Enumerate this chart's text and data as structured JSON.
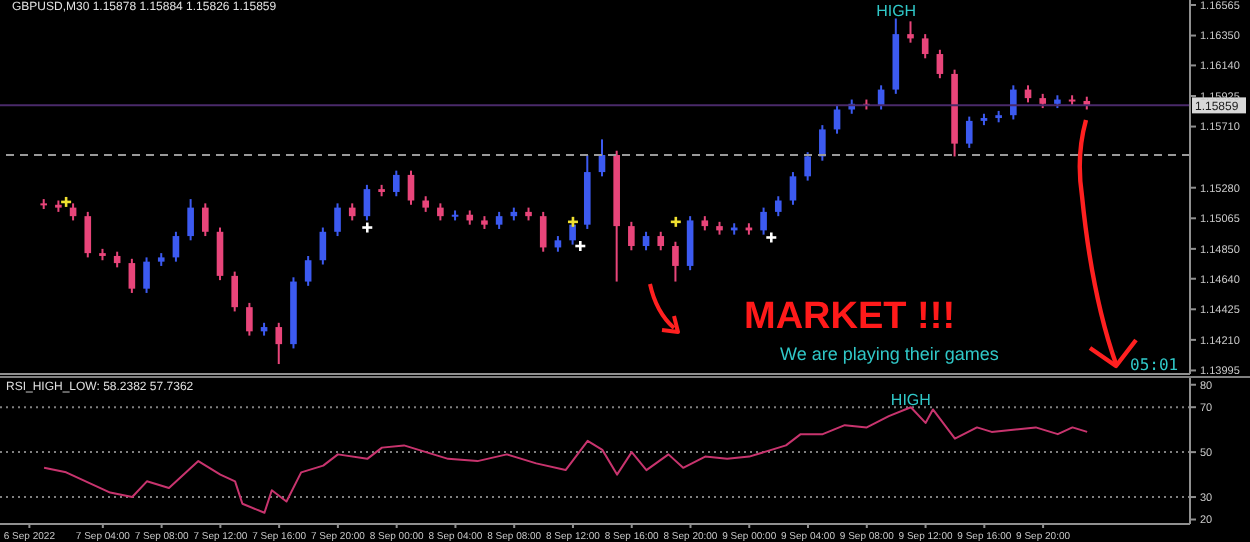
{
  "chart_data": [
    {
      "type": "candlestick",
      "title": "GBPUSD,M30 1.15878 1.15884 1.15826 1.15859",
      "x": [
        "2022-09-07T00:00",
        "2022-09-07T01:00",
        "2022-09-07T02:00",
        "2022-09-07T03:00",
        "2022-09-07T04:00",
        "2022-09-07T05:00",
        "2022-09-07T06:00",
        "2022-09-07T07:00",
        "2022-09-07T08:00",
        "2022-09-07T09:00",
        "2022-09-07T10:00",
        "2022-09-07T11:00",
        "2022-09-07T12:00",
        "2022-09-07T13:00",
        "2022-09-07T14:00",
        "2022-09-07T15:00",
        "2022-09-07T16:00",
        "2022-09-07T17:00",
        "2022-09-07T18:00",
        "2022-09-07T19:00",
        "2022-09-07T20:00",
        "2022-09-07T21:00",
        "2022-09-07T22:00",
        "2022-09-07T23:00",
        "2022-09-08T00:00",
        "2022-09-08T01:00",
        "2022-09-08T02:00",
        "2022-09-08T03:00",
        "2022-09-08T04:00",
        "2022-09-08T05:00",
        "2022-09-08T06:00",
        "2022-09-08T07:00",
        "2022-09-08T08:00",
        "2022-09-08T09:00",
        "2022-09-08T10:00",
        "2022-09-08T11:00",
        "2022-09-08T12:00",
        "2022-09-08T13:00",
        "2022-09-08T14:00",
        "2022-09-08T15:00",
        "2022-09-08T16:00",
        "2022-09-08T17:00",
        "2022-09-08T18:00",
        "2022-09-08T19:00",
        "2022-09-08T20:00",
        "2022-09-08T21:00",
        "2022-09-08T22:00",
        "2022-09-08T23:00",
        "2022-09-09T00:00",
        "2022-09-09T01:00",
        "2022-09-09T02:00",
        "2022-09-09T03:00",
        "2022-09-09T04:00",
        "2022-09-09T05:00",
        "2022-09-09T06:00",
        "2022-09-09T07:00",
        "2022-09-09T08:00",
        "2022-09-09T09:00",
        "2022-09-09T10:00",
        "2022-09-09T11:00",
        "2022-09-09T12:00",
        "2022-09-09T13:00",
        "2022-09-09T14:00",
        "2022-09-09T15:00",
        "2022-09-09T16:00",
        "2022-09-09T17:00",
        "2022-09-09T18:00",
        "2022-09-09T19:00",
        "2022-09-09T20:00",
        "2022-09-09T21:00",
        "2022-09-09T22:00",
        "2022-09-09T23:00"
      ],
      "ohlc": [
        [
          1.1517,
          1.152,
          1.1513,
          1.1516
        ],
        [
          1.1516,
          1.1519,
          1.1511,
          1.1514
        ],
        [
          1.1514,
          1.1517,
          1.1505,
          1.1508
        ],
        [
          1.1508,
          1.1511,
          1.1479,
          1.1482
        ],
        [
          1.1482,
          1.1485,
          1.1477,
          1.148
        ],
        [
          1.148,
          1.1483,
          1.1472,
          1.1475
        ],
        [
          1.1475,
          1.1478,
          1.1454,
          1.1457
        ],
        [
          1.1457,
          1.1479,
          1.1454,
          1.1476
        ],
        [
          1.1476,
          1.1482,
          1.1473,
          1.1479
        ],
        [
          1.1479,
          1.1497,
          1.1476,
          1.1494
        ],
        [
          1.1494,
          1.152,
          1.1491,
          1.1514
        ],
        [
          1.1514,
          1.1517,
          1.1494,
          1.1497
        ],
        [
          1.1497,
          1.15,
          1.1463,
          1.1466
        ],
        [
          1.1466,
          1.1469,
          1.1441,
          1.1444
        ],
        [
          1.1444,
          1.1447,
          1.1424,
          1.1427
        ],
        [
          1.1427,
          1.1433,
          1.1424,
          1.143
        ],
        [
          1.143,
          1.1433,
          1.1404,
          1.1418
        ],
        [
          1.1418,
          1.1465,
          1.1415,
          1.1462
        ],
        [
          1.1462,
          1.148,
          1.1459,
          1.1477
        ],
        [
          1.1477,
          1.15,
          1.1474,
          1.1497
        ],
        [
          1.1497,
          1.1517,
          1.1494,
          1.1514
        ],
        [
          1.1514,
          1.1517,
          1.1505,
          1.1508
        ],
        [
          1.1508,
          1.153,
          1.1505,
          1.1527
        ],
        [
          1.1527,
          1.153,
          1.1522,
          1.1525
        ],
        [
          1.1525,
          1.154,
          1.1522,
          1.1537
        ],
        [
          1.1537,
          1.154,
          1.1516,
          1.1519
        ],
        [
          1.1519,
          1.1522,
          1.1511,
          1.1514
        ],
        [
          1.1514,
          1.1517,
          1.1505,
          1.1508
        ],
        [
          1.1508,
          1.1512,
          1.1505,
          1.1509
        ],
        [
          1.1509,
          1.1512,
          1.1502,
          1.1505
        ],
        [
          1.1505,
          1.1508,
          1.1499,
          1.1502
        ],
        [
          1.1502,
          1.1511,
          1.1499,
          1.1508
        ],
        [
          1.1508,
          1.1514,
          1.1505,
          1.1511
        ],
        [
          1.1511,
          1.1514,
          1.1505,
          1.1508
        ],
        [
          1.1508,
          1.1511,
          1.1483,
          1.1486
        ],
        [
          1.1486,
          1.1494,
          1.1483,
          1.1491
        ],
        [
          1.1491,
          1.1505,
          1.1488,
          1.1502
        ],
        [
          1.1502,
          1.1551,
          1.1499,
          1.1539
        ],
        [
          1.1539,
          1.1562,
          1.1536,
          1.1551
        ],
        [
          1.1551,
          1.1554,
          1.1462,
          1.1501
        ],
        [
          1.1501,
          1.1504,
          1.1484,
          1.1487
        ],
        [
          1.1487,
          1.1497,
          1.1484,
          1.1494
        ],
        [
          1.1494,
          1.1497,
          1.1484,
          1.1487
        ],
        [
          1.1487,
          1.149,
          1.1462,
          1.1473
        ],
        [
          1.1473,
          1.1508,
          1.147,
          1.1505
        ],
        [
          1.1505,
          1.1508,
          1.1498,
          1.1501
        ],
        [
          1.1501,
          1.1504,
          1.1495,
          1.1498
        ],
        [
          1.1498,
          1.1503,
          1.1495,
          1.15
        ],
        [
          1.15,
          1.1503,
          1.1495,
          1.1498
        ],
        [
          1.1498,
          1.1514,
          1.1495,
          1.1511
        ],
        [
          1.1511,
          1.1522,
          1.1508,
          1.1519
        ],
        [
          1.1519,
          1.1539,
          1.1516,
          1.1536
        ],
        [
          1.1536,
          1.1553,
          1.1533,
          1.155
        ],
        [
          1.155,
          1.1572,
          1.1547,
          1.1569
        ],
        [
          1.1569,
          1.1586,
          1.1566,
          1.1583
        ],
        [
          1.1583,
          1.159,
          1.158,
          1.1587
        ],
        [
          1.1587,
          1.159,
          1.1583,
          1.1586
        ],
        [
          1.1586,
          1.16,
          1.1583,
          1.1597
        ],
        [
          1.1597,
          1.1647,
          1.1594,
          1.1636
        ],
        [
          1.1636,
          1.1645,
          1.163,
          1.1633
        ],
        [
          1.1633,
          1.1636,
          1.1619,
          1.1622
        ],
        [
          1.1622,
          1.1625,
          1.1605,
          1.1608
        ],
        [
          1.1608,
          1.1611,
          1.155,
          1.1559
        ],
        [
          1.1559,
          1.1578,
          1.1556,
          1.1575
        ],
        [
          1.1575,
          1.158,
          1.1572,
          1.1577
        ],
        [
          1.1577,
          1.1582,
          1.1574,
          1.1579
        ],
        [
          1.1579,
          1.16,
          1.1576,
          1.1597
        ],
        [
          1.1597,
          1.16,
          1.1588,
          1.1591
        ],
        [
          1.1591,
          1.1594,
          1.1584,
          1.1587
        ],
        [
          1.1587,
          1.1593,
          1.1584,
          1.159
        ],
        [
          1.159,
          1.1593,
          1.1586,
          1.1589
        ],
        [
          1.1589,
          1.1592,
          1.1583,
          1.1586
        ]
      ],
      "colors": [
        "#e8457a",
        "#e8457a",
        "#e8457a",
        "#e8457a",
        "#e8457a",
        "#e8457a",
        "#e8457a",
        "#3c5af0",
        "#3c5af0",
        "#3c5af0",
        "#3c5af0",
        "#e8457a",
        "#e8457a",
        "#e8457a",
        "#e8457a",
        "#3c5af0",
        "#e8457a",
        "#3c5af0",
        "#3c5af0",
        "#3c5af0",
        "#3c5af0",
        "#e8457a",
        "#3c5af0",
        "#e8457a",
        "#3c5af0",
        "#e8457a",
        "#e8457a",
        "#e8457a",
        "#3c5af0",
        "#e8457a",
        "#e8457a",
        "#3c5af0",
        "#3c5af0",
        "#e8457a",
        "#e8457a",
        "#3c5af0",
        "#3c5af0",
        "#3c5af0",
        "#3c5af0",
        "#e8457a",
        "#e8457a",
        "#3c5af0",
        "#e8457a",
        "#e8457a",
        "#3c5af0",
        "#e8457a",
        "#e8457a",
        "#3c5af0",
        "#e8457a",
        "#3c5af0",
        "#3c5af0",
        "#3c5af0",
        "#3c5af0",
        "#3c5af0",
        "#3c5af0",
        "#3c5af0",
        "#e8457a",
        "#3c5af0",
        "#3c5af0",
        "#e8457a",
        "#e8457a",
        "#e8457a",
        "#e8457a",
        "#3c5af0",
        "#3c5af0",
        "#3c5af0",
        "#3c5af0",
        "#e8457a",
        "#e8457a",
        "#3c5af0",
        "#e8457a",
        "#e8457a"
      ],
      "series": [
        {
          "type": "scatter",
          "color": "#f0e030",
          "marker": "cross",
          "x": [
            "2022-09-07T01:30",
            "2022-09-08T12:00",
            "2022-09-08T19:00"
          ],
          "values": [
            1.1518,
            1.1504,
            1.1504
          ]
        },
        {
          "type": "scatter",
          "color": "#ffffff",
          "marker": "cross",
          "x": [
            "2022-09-07T22:00",
            "2022-09-08T12:30",
            "2022-09-09T01:30"
          ],
          "values": [
            1.15,
            1.1487,
            1.1493
          ]
        }
      ],
      "xlim": [
        "2022-09-06T21:00",
        "2022-09-10T06:00"
      ],
      "ylim": [
        1.1397,
        1.166
      ],
      "yticks": [
        1.16565,
        {
          "value": 1.1635,
          "label": "1.16350"
        },
        {
          "value": 1.1614,
          "label": "1.16140"
        },
        1.15925,
        {
          "value": 1.1571,
          "label": "1.15710"
        },
        {
          "value": 1.1528,
          "label": "1.15280"
        },
        1.15065,
        {
          "value": 1.1485,
          "label": "1.14850"
        },
        {
          "value": 1.1464,
          "label": "1.14640"
        },
        1.14425,
        {
          "value": 1.1421,
          "label": "1.14210"
        },
        1.13995
      ],
      "tick_labels": "y",
      "grid": false,
      "ref_lines": [
        {
          "axis": "y",
          "value": 1.15859,
          "label": "1.15859",
          "color": "#4a2a6a",
          "line_style": "solid"
        },
        {
          "axis": "y",
          "value": 1.1551,
          "color": "#9a9a9a",
          "line_style": "dashed"
        }
      ],
      "annotations": [
        "MARKET !!!",
        "We are playing their games",
        "05:01",
        {
          "text": "HIGH",
          "x": "2022-09-09T10:00",
          "y": 1.1647
        }
      ]
    },
    {
      "type": "line",
      "title": "RSI_HIGH_LOW: 58.2382 57.7362",
      "x": [
        "2022-09-07T00:00",
        "2022-09-07T01:30",
        "2022-09-07T04:30",
        "2022-09-07T06:00",
        "2022-09-07T07:00",
        "2022-09-07T08:30",
        "2022-09-07T10:30",
        "2022-09-07T12:00",
        "2022-09-07T13:00",
        "2022-09-07T13:30",
        "2022-09-07T15:00",
        "2022-09-07T15:30",
        "2022-09-07T16:30",
        "2022-09-07T17:30",
        "2022-09-07T19:00",
        "2022-09-07T20:00",
        "2022-09-07T22:00",
        "2022-09-07T23:00",
        "2022-09-08T00:30",
        "2022-09-08T02:30",
        "2022-09-08T03:30",
        "2022-09-08T05:30",
        "2022-09-08T07:30",
        "2022-09-08T09:30",
        "2022-09-08T11:30",
        "2022-09-08T13:00",
        "2022-09-08T14:00",
        "2022-09-08T15:00",
        "2022-09-08T16:00",
        "2022-09-08T17:00",
        "2022-09-08T18:30",
        "2022-09-08T19:30",
        "2022-09-08T21:00",
        "2022-09-08T22:30",
        "2022-09-09T00:00",
        "2022-09-09T02:30",
        "2022-09-09T03:30",
        "2022-09-09T05:00",
        "2022-09-09T06:30",
        "2022-09-09T08:00",
        "2022-09-09T09:30",
        "2022-09-09T11:00",
        "2022-09-09T12:00",
        "2022-09-09T12:30",
        "2022-09-09T14:00",
        "2022-09-09T15:30",
        "2022-09-09T16:30",
        "2022-09-09T19:30",
        "2022-09-09T21:00",
        "2022-09-09T22:00",
        "2022-09-09T23:00"
      ],
      "series": [
        {
          "color": "#c8346e",
          "values": [
            43,
            41,
            32,
            30,
            37,
            34,
            46,
            40,
            37,
            27,
            23,
            33,
            28,
            41,
            44,
            49,
            47,
            52,
            53,
            49,
            47,
            46,
            49,
            45,
            42,
            55,
            51,
            40,
            50,
            42,
            49,
            43,
            48,
            47,
            48,
            53,
            58,
            58,
            62,
            61,
            66,
            70,
            63,
            69,
            56,
            61,
            59,
            61,
            58,
            61,
            59
          ]
        }
      ],
      "xlim": [
        "2022-09-06T21:00",
        "2022-09-10T06:00"
      ],
      "xticks": [
        {
          "value": "2022-09-06T23:00",
          "label": "6 Sep 2022"
        },
        {
          "value": "2022-09-07T04:00",
          "label": "7 Sep 04:00"
        },
        {
          "value": "2022-09-07T08:00",
          "label": "7 Sep 08:00"
        },
        {
          "value": "2022-09-07T12:00",
          "label": "7 Sep 12:00"
        },
        {
          "value": "2022-09-07T16:00",
          "label": "7 Sep 16:00"
        },
        {
          "value": "2022-09-07T20:00",
          "label": "7 Sep 20:00"
        },
        {
          "value": "2022-09-08T00:00",
          "label": "8 Sep 00:00"
        },
        {
          "value": "2022-09-08T04:00",
          "label": "8 Sep 04:00"
        },
        {
          "value": "2022-09-08T08:00",
          "label": "8 Sep 08:00"
        },
        {
          "value": "2022-09-08T12:00",
          "label": "8 Sep 12:00"
        },
        {
          "value": "2022-09-08T16:00",
          "label": "8 Sep 16:00"
        },
        {
          "value": "2022-09-08T20:00",
          "label": "8 Sep 20:00"
        },
        {
          "value": "2022-09-09T00:00",
          "label": "9 Sep 00:00"
        },
        {
          "value": "2022-09-09T04:00",
          "label": "9 Sep 04:00"
        },
        {
          "value": "2022-09-09T08:00",
          "label": "9 Sep 08:00"
        },
        {
          "value": "2022-09-09T12:00",
          "label": "9 Sep 12:00"
        },
        {
          "value": "2022-09-09T16:00",
          "label": "9 Sep 16:00"
        },
        {
          "value": "2022-09-09T20:00",
          "label": "9 Sep 20:00"
        }
      ],
      "ylim": [
        18,
        83
      ],
      "yticks": [
        20,
        30,
        50,
        70,
        80
      ],
      "grid": false,
      "marker": "none",
      "line_style": "solid",
      "ref_lines": [
        {
          "axis": "y",
          "value": 70,
          "color": "#808080",
          "line_style": "dotted"
        },
        {
          "axis": "y",
          "value": 50,
          "color": "#808080",
          "line_style": "dotted"
        },
        {
          "axis": "y",
          "value": 30,
          "color": "#808080",
          "line_style": "dotted"
        }
      ],
      "annotations": [
        {
          "text": "HIGH",
          "x": "2022-09-09T11:00",
          "y": 70
        }
      ]
    }
  ]
}
